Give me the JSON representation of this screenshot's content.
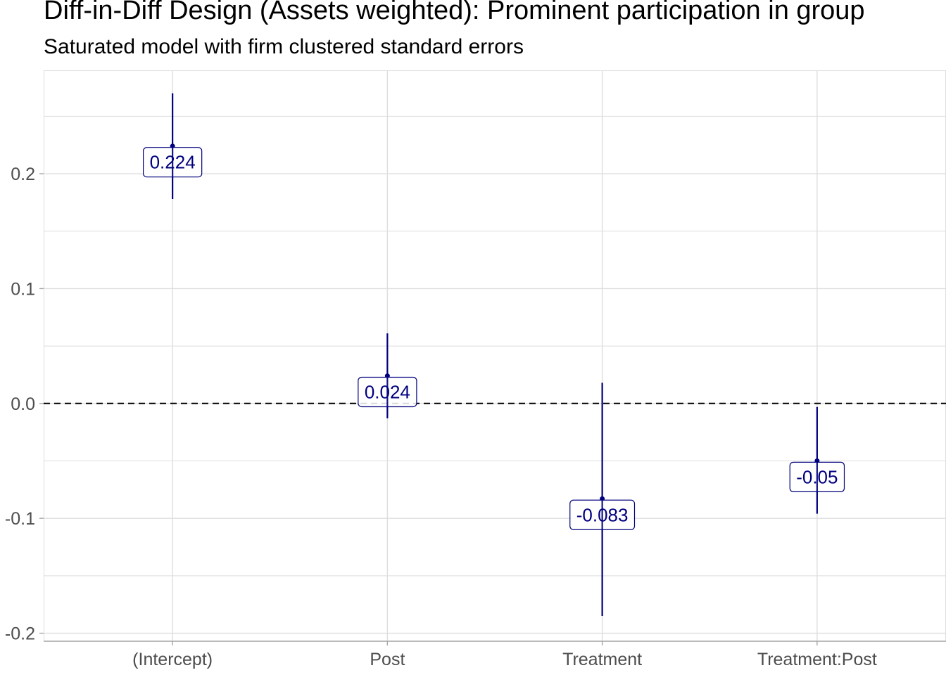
{
  "chart_data": {
    "type": "scatter",
    "title": "Diff-in-Diff Design (Assets weighted): Prominent participation in group",
    "subtitle": "Saturated model with firm clustered standard errors",
    "xlabel": "",
    "ylabel": "",
    "categories": [
      "(Intercept)",
      "Post",
      "Treatment",
      "Treatment:Post"
    ],
    "series": [
      {
        "estimate": [
          0.224,
          0.024,
          -0.083,
          -0.05
        ],
        "ci_low": [
          0.178,
          -0.013,
          -0.185,
          -0.096
        ],
        "ci_high": [
          0.27,
          0.061,
          0.018,
          -0.003
        ],
        "labels": [
          "0.224",
          "0.024",
          "-0.083",
          "-0.05"
        ]
      }
    ],
    "ylim": [
      -0.207,
      0.29
    ],
    "yticks": [
      -0.2,
      -0.1,
      0.0,
      0.1,
      0.2
    ],
    "ytick_labels": [
      "-0.2",
      "-0.1",
      "0.0",
      "0.1",
      "0.2"
    ],
    "reference_line": 0,
    "grid": true,
    "legend": "none",
    "colors": {
      "series": "#00007f",
      "grid": "#dedede",
      "axis": "#a6a6a6",
      "tick_text": "#4d4d4d"
    }
  }
}
